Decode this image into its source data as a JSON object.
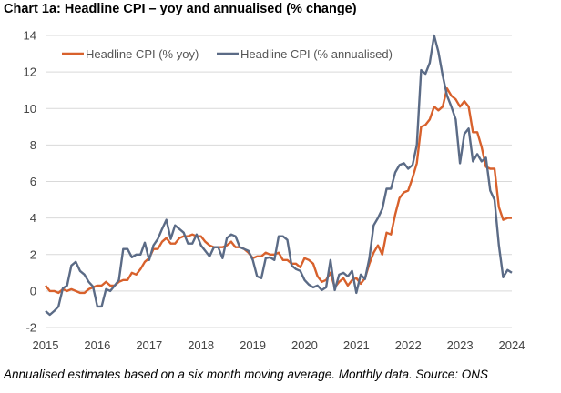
{
  "chart_data": {
    "type": "line",
    "title": "Chart 1a: Headline CPI – yoy and annualised (% change)",
    "caption": "Annualised estimates based on a six month moving average. Monthly data. Source: ONS",
    "xlabel": "",
    "ylabel": "",
    "x_start": "2015-01",
    "x_frequency": "monthly",
    "x": [
      "2015-01",
      "2015-02",
      "2015-03",
      "2015-04",
      "2015-05",
      "2015-06",
      "2015-07",
      "2015-08",
      "2015-09",
      "2015-10",
      "2015-11",
      "2015-12",
      "2016-01",
      "2016-02",
      "2016-03",
      "2016-04",
      "2016-05",
      "2016-06",
      "2016-07",
      "2016-08",
      "2016-09",
      "2016-10",
      "2016-11",
      "2016-12",
      "2017-01",
      "2017-02",
      "2017-03",
      "2017-04",
      "2017-05",
      "2017-06",
      "2017-07",
      "2017-08",
      "2017-09",
      "2017-10",
      "2017-11",
      "2017-12",
      "2018-01",
      "2018-02",
      "2018-03",
      "2018-04",
      "2018-05",
      "2018-06",
      "2018-07",
      "2018-08",
      "2018-09",
      "2018-10",
      "2018-11",
      "2018-12",
      "2019-01",
      "2019-02",
      "2019-03",
      "2019-04",
      "2019-05",
      "2019-06",
      "2019-07",
      "2019-08",
      "2019-09",
      "2019-10",
      "2019-11",
      "2019-12",
      "2020-01",
      "2020-02",
      "2020-03",
      "2020-04",
      "2020-05",
      "2020-06",
      "2020-07",
      "2020-08",
      "2020-09",
      "2020-10",
      "2020-11",
      "2020-12",
      "2021-01",
      "2021-02",
      "2021-03",
      "2021-04",
      "2021-05",
      "2021-06",
      "2021-07",
      "2021-08",
      "2021-09",
      "2021-10",
      "2021-11",
      "2021-12",
      "2022-01",
      "2022-02",
      "2022-03",
      "2022-04",
      "2022-05",
      "2022-06",
      "2022-07",
      "2022-08",
      "2022-09",
      "2022-10",
      "2022-11",
      "2022-12",
      "2023-01",
      "2023-02",
      "2023-03",
      "2023-04",
      "2023-05",
      "2023-06",
      "2023-07",
      "2023-08",
      "2023-09",
      "2023-10",
      "2023-11",
      "2023-12",
      "2024-01"
    ],
    "xticks": [
      "2015",
      "2016",
      "2017",
      "2018",
      "2019",
      "2020",
      "2021",
      "2022",
      "2023",
      "2024"
    ],
    "xlim": [
      "2015-01",
      "2024-01"
    ],
    "ylim": [
      -2,
      14
    ],
    "yticks": [
      "-2",
      "0",
      "2",
      "4",
      "6",
      "8",
      "10",
      "12",
      "14"
    ],
    "grid": "horizontal",
    "legend_position": "top-left",
    "series": [
      {
        "name": "Headline CPI (% yoy)",
        "color": "#d8612c",
        "values": [
          0.3,
          0.0,
          0.0,
          -0.1,
          0.1,
          0.0,
          0.1,
          0.0,
          -0.1,
          -0.1,
          0.1,
          0.2,
          0.3,
          0.3,
          0.5,
          0.3,
          0.3,
          0.5,
          0.6,
          0.6,
          1.0,
          0.9,
          1.2,
          1.6,
          1.8,
          2.3,
          2.3,
          2.7,
          2.9,
          2.6,
          2.6,
          2.9,
          3.0,
          3.0,
          3.1,
          3.0,
          3.0,
          2.7,
          2.5,
          2.4,
          2.4,
          2.4,
          2.5,
          2.7,
          2.4,
          2.4,
          2.3,
          2.1,
          1.8,
          1.9,
          1.9,
          2.1,
          2.0,
          2.0,
          2.1,
          1.7,
          1.7,
          1.5,
          1.5,
          1.3,
          1.8,
          1.7,
          1.5,
          0.8,
          0.5,
          0.6,
          1.0,
          0.2,
          0.5,
          0.7,
          0.3,
          0.6,
          0.7,
          0.4,
          0.7,
          1.5,
          2.1,
          2.5,
          2.0,
          3.2,
          3.1,
          4.2,
          5.1,
          5.4,
          5.5,
          6.2,
          7.0,
          9.0,
          9.1,
          9.4,
          10.1,
          9.9,
          10.1,
          11.1,
          10.7,
          10.5,
          10.1,
          10.4,
          10.1,
          8.7,
          8.7,
          7.9,
          6.8,
          6.7,
          6.7,
          4.6,
          3.9,
          4.0,
          4.0
        ]
      },
      {
        "name": "Headline CPI (% annualised)",
        "color": "#5b6b86",
        "values": [
          -1.1,
          -1.3,
          -1.1,
          -0.85,
          0.15,
          0.3,
          1.4,
          1.6,
          1.1,
          0.9,
          0.5,
          0.25,
          -0.85,
          -0.85,
          0.1,
          0.0,
          0.3,
          0.6,
          2.3,
          2.3,
          1.85,
          2.0,
          2.0,
          2.65,
          1.7,
          2.5,
          2.85,
          3.4,
          3.9,
          2.85,
          3.6,
          3.4,
          3.2,
          2.6,
          2.6,
          3.1,
          2.5,
          2.2,
          1.9,
          2.4,
          2.4,
          1.8,
          2.9,
          3.1,
          3.0,
          2.4,
          2.3,
          2.2,
          1.7,
          0.8,
          0.7,
          1.8,
          1.85,
          1.7,
          3.0,
          3.0,
          2.8,
          1.4,
          1.2,
          1.1,
          0.6,
          0.35,
          0.2,
          0.3,
          0.05,
          0.2,
          1.7,
          0.05,
          0.9,
          1.0,
          0.8,
          1.1,
          -0.1,
          0.9,
          0.65,
          1.8,
          3.6,
          4.0,
          4.5,
          5.6,
          5.6,
          6.5,
          6.9,
          7.0,
          6.7,
          6.9,
          8.0,
          12.1,
          11.9,
          12.5,
          14.0,
          13.1,
          11.8,
          10.7,
          10.1,
          9.4,
          7.0,
          8.6,
          8.9,
          7.1,
          7.5,
          7.1,
          7.3,
          5.5,
          5.0,
          2.5,
          0.75,
          1.15,
          1.0
        ]
      }
    ]
  }
}
